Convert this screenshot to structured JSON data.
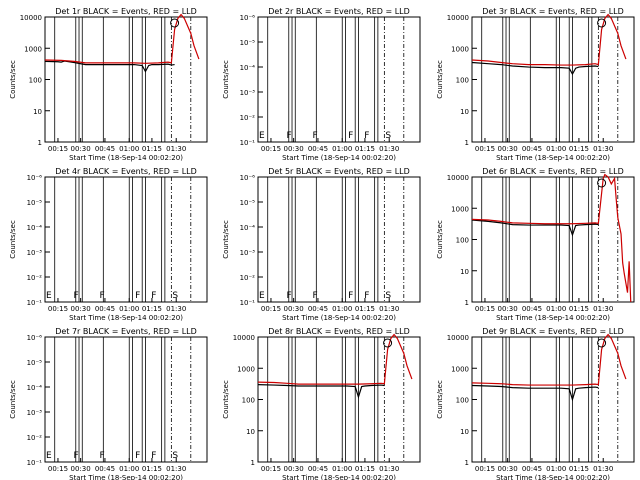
{
  "chart_data": [
    {
      "title": "Det 1r BLACK = Events, RED = LLD",
      "type": "line",
      "variant": "counts",
      "ylabel": "Counts/sec",
      "xlabel": "Start Time (18-Sep-14 00:02:20)",
      "y_ticks": [
        "1",
        "10",
        "100",
        "1000",
        "10000"
      ],
      "x_ticks": [
        "00:15",
        "00:30",
        "00:45",
        "01:00",
        "01:15",
        "01:30"
      ],
      "markers": [],
      "y_axis": "log",
      "ylim": [
        1,
        10000
      ],
      "series": [
        {
          "color": "#000000",
          "x": [
            0,
            8,
            10,
            12,
            18,
            25,
            35,
            45,
            55,
            60,
            62,
            64,
            66,
            70,
            76,
            78,
            80
          ],
          "y": [
            380,
            370,
            360,
            390,
            350,
            300,
            300,
            300,
            300,
            280,
            180,
            280,
            300,
            300,
            310,
            290,
            300
          ]
        },
        {
          "color": "#cc0000",
          "x": [
            0,
            10,
            18,
            25,
            35,
            45,
            55,
            62,
            70,
            76,
            78,
            80,
            82,
            84,
            86,
            90,
            92,
            95
          ],
          "y": [
            420,
            410,
            380,
            340,
            340,
            340,
            340,
            330,
            340,
            360,
            340,
            4000,
            9000,
            12000,
            9000,
            3000,
            1200,
            450
          ]
        }
      ]
    },
    {
      "title": "Det 2r BLACK = Events, RED = LLD",
      "type": "line",
      "variant": "empty",
      "ylabel": "Counts/sec",
      "xlabel": "Start Time (18-Sep-14 00:02:20)",
      "y_ticks": [
        "10⁻¹",
        "10⁻²",
        "10⁻³",
        "10⁻⁴",
        "10⁻⁵",
        "10⁻⁶"
      ],
      "x_ticks": [
        "00:15",
        "00:30",
        "00:45",
        "01:00",
        "01:15",
        "01:30"
      ],
      "markers": [
        "E",
        "F",
        "F",
        "F",
        "F",
        "S"
      ],
      "y_axis": "log",
      "series": []
    },
    {
      "title": "Det 3r BLACK = Events, RED = LLD",
      "type": "line",
      "variant": "counts",
      "ylabel": "Counts/sec",
      "xlabel": "Start Time (18-Sep-14 00:02:20)",
      "y_ticks": [
        "1",
        "10",
        "100",
        "1000",
        "10000"
      ],
      "x_ticks": [
        "00:15",
        "00:30",
        "00:45",
        "01:00",
        "01:15",
        "01:30"
      ],
      "markers": [],
      "y_axis": "log",
      "ylim": [
        1,
        10000
      ],
      "series": [
        {
          "color": "#000000",
          "x": [
            0,
            10,
            18,
            25,
            35,
            45,
            55,
            60,
            62,
            64,
            66,
            70,
            76,
            78
          ],
          "y": [
            350,
            320,
            300,
            270,
            250,
            240,
            240,
            230,
            150,
            230,
            250,
            260,
            270,
            260
          ]
        },
        {
          "color": "#cc0000",
          "x": [
            0,
            10,
            18,
            25,
            35,
            45,
            55,
            62,
            70,
            76,
            78,
            80,
            82,
            84,
            86,
            90,
            92,
            95
          ],
          "y": [
            420,
            390,
            350,
            320,
            300,
            300,
            290,
            290,
            300,
            320,
            300,
            4000,
            9000,
            12000,
            9000,
            3000,
            1200,
            450
          ]
        }
      ]
    },
    {
      "title": "Det 4r BLACK = Events, RED = LLD",
      "type": "line",
      "variant": "empty",
      "ylabel": "Counts/sec",
      "xlabel": "Start Time (18-Sep-14 00:02:20)",
      "y_ticks": [
        "10⁻¹",
        "10⁻²",
        "10⁻³",
        "10⁻⁴",
        "10⁻⁵",
        "10⁻⁶"
      ],
      "x_ticks": [
        "00:15",
        "00:30",
        "00:45",
        "01:00",
        "01:15",
        "01:30"
      ],
      "markers": [
        "E",
        "F",
        "F",
        "F",
        "F",
        "S"
      ],
      "y_axis": "log",
      "series": []
    },
    {
      "title": "Det 5r BLACK = Events, RED = LLD",
      "type": "line",
      "variant": "empty",
      "ylabel": "Counts/sec",
      "xlabel": "Start Time (18-Sep-14 00:02:20)",
      "y_ticks": [
        "10⁻¹",
        "10⁻²",
        "10⁻³",
        "10⁻⁴",
        "10⁻⁵",
        "10⁻⁶"
      ],
      "x_ticks": [
        "00:15",
        "00:30",
        "00:45",
        "01:00",
        "01:15",
        "01:30"
      ],
      "markers": [
        "E",
        "F",
        "F",
        "F",
        "F",
        "S"
      ],
      "y_axis": "log",
      "series": []
    },
    {
      "title": "Det 6r BLACK = Events, RED = LLD",
      "type": "line",
      "variant": "counts",
      "ylabel": "Counts/sec",
      "xlabel": "Start Time (18-Sep-14 00:02:20)",
      "y_ticks": [
        "1",
        "10",
        "100",
        "1000",
        "10000"
      ],
      "x_ticks": [
        "00:15",
        "00:30",
        "00:45",
        "01:00",
        "01:15",
        "01:30"
      ],
      "markers": [],
      "y_axis": "log",
      "ylim": [
        1,
        10000
      ],
      "series": [
        {
          "color": "#000000",
          "x": [
            0,
            10,
            18,
            25,
            35,
            45,
            55,
            60,
            62,
            64,
            66,
            70,
            76,
            78
          ],
          "y": [
            420,
            380,
            340,
            300,
            290,
            290,
            290,
            280,
            140,
            280,
            290,
            300,
            310,
            300
          ]
        },
        {
          "color": "#cc0000",
          "x": [
            0,
            10,
            18,
            25,
            35,
            45,
            55,
            62,
            70,
            76,
            78,
            80,
            81,
            82,
            84,
            86,
            88,
            89,
            90,
            92,
            93,
            94,
            96,
            97,
            98
          ],
          "y": [
            440,
            420,
            380,
            340,
            330,
            320,
            320,
            320,
            330,
            340,
            330,
            3000,
            9000,
            12000,
            10000,
            6000,
            9000,
            2000,
            500,
            150,
            18,
            8,
            2,
            20,
            1
          ]
        }
      ]
    },
    {
      "title": "Det 7r BLACK = Events, RED = LLD",
      "type": "line",
      "variant": "empty",
      "ylabel": "Counts/sec",
      "xlabel": "Start Time (18-Sep-14 00:02:20)",
      "y_ticks": [
        "10⁻¹",
        "10⁻²",
        "10⁻³",
        "10⁻⁴",
        "10⁻⁵",
        "10⁻⁶"
      ],
      "x_ticks": [
        "00:15",
        "00:30",
        "00:45",
        "01:00",
        "01:15",
        "01:30"
      ],
      "markers": [
        "E",
        "F",
        "F",
        "F",
        "F",
        "S"
      ],
      "y_axis": "log",
      "series": []
    },
    {
      "title": "Det 8r BLACK = Events, RED = LLD",
      "type": "line",
      "variant": "counts",
      "ylabel": "Counts/sec",
      "xlabel": "Start Time (18-Sep-14 00:02:20)",
      "y_ticks": [
        "1",
        "10",
        "100",
        "1000",
        "10000"
      ],
      "x_ticks": [
        "00:15",
        "00:30",
        "00:45",
        "01:00",
        "01:15",
        "01:30"
      ],
      "markers": [],
      "y_axis": "log",
      "ylim": [
        1,
        10000
      ],
      "series": [
        {
          "color": "#000000",
          "x": [
            0,
            10,
            18,
            25,
            35,
            45,
            55,
            60,
            62,
            64,
            66,
            70,
            76,
            78
          ],
          "y": [
            300,
            290,
            280,
            270,
            270,
            270,
            270,
            260,
            120,
            260,
            270,
            280,
            290,
            280
          ]
        },
        {
          "color": "#cc0000",
          "x": [
            0,
            10,
            18,
            25,
            35,
            45,
            55,
            62,
            70,
            76,
            78,
            80,
            82,
            84,
            86,
            90,
            92,
            95
          ],
          "y": [
            360,
            350,
            330,
            310,
            310,
            310,
            310,
            310,
            320,
            330,
            320,
            4000,
            9000,
            12000,
            9000,
            3000,
            1200,
            450
          ]
        }
      ]
    },
    {
      "title": "Det 9r BLACK = Events, RED = LLD",
      "type": "line",
      "variant": "counts",
      "ylabel": "Counts/sec",
      "xlabel": "Start Time (18-Sep-14 00:02:20)",
      "y_ticks": [
        "1",
        "10",
        "100",
        "1000",
        "10000"
      ],
      "x_ticks": [
        "00:15",
        "00:30",
        "00:45",
        "01:00",
        "01:15",
        "01:30"
      ],
      "markers": [],
      "y_axis": "log",
      "ylim": [
        1,
        10000
      ],
      "series": [
        {
          "color": "#000000",
          "x": [
            0,
            10,
            18,
            25,
            35,
            45,
            55,
            60,
            62,
            64,
            66,
            70,
            76,
            78
          ],
          "y": [
            280,
            270,
            260,
            240,
            230,
            230,
            230,
            220,
            100,
            220,
            230,
            240,
            250,
            240
          ]
        },
        {
          "color": "#cc0000",
          "x": [
            0,
            10,
            18,
            25,
            35,
            45,
            55,
            62,
            70,
            76,
            78,
            80,
            82,
            84,
            86,
            90,
            92,
            95
          ],
          "y": [
            340,
            330,
            320,
            300,
            290,
            290,
            290,
            290,
            300,
            310,
            300,
            4000,
            9000,
            12000,
            9000,
            3000,
            1200,
            450
          ]
        }
      ]
    }
  ]
}
